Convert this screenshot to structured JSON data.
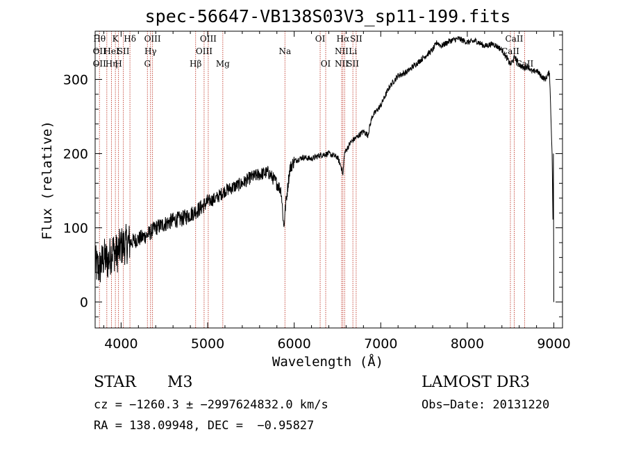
{
  "chart_data": {
    "type": "line",
    "title": "spec-56647-VB138S03V3_sp11-199.fits",
    "xlabel": "Wavelength (Å)",
    "ylabel": "Flux (relative)",
    "xlim": [
      3700,
      9100
    ],
    "ylim": [
      -35,
      365
    ],
    "xticks": [
      4000,
      5000,
      6000,
      7000,
      8000,
      9000
    ],
    "yticks": [
      0,
      100,
      200,
      300
    ],
    "series": [
      {
        "name": "spectrum",
        "x": [
          3700,
          3750,
          3800,
          3850,
          3900,
          3950,
          4000,
          4100,
          4200,
          4300,
          4400,
          4500,
          4600,
          4700,
          4800,
          4900,
          5000,
          5100,
          5200,
          5300,
          5400,
          5500,
          5600,
          5700,
          5800,
          5850,
          5880,
          5900,
          5950,
          6000,
          6100,
          6200,
          6300,
          6400,
          6500,
          6550,
          6563,
          6580,
          6650,
          6700,
          6800,
          6850,
          6900,
          7000,
          7100,
          7200,
          7300,
          7400,
          7500,
          7600,
          7650,
          7700,
          7800,
          7900,
          8000,
          8100,
          8200,
          8300,
          8400,
          8500,
          8550,
          8600,
          8650,
          8700,
          8750,
          8800,
          8850,
          8900,
          8950,
          8980,
          9000
        ],
        "y": [
          50,
          45,
          60,
          55,
          70,
          65,
          75,
          80,
          85,
          90,
          100,
          105,
          110,
          112,
          118,
          125,
          135,
          140,
          150,
          155,
          160,
          168,
          172,
          175,
          160,
          150,
          100,
          130,
          180,
          190,
          195,
          193,
          198,
          200,
          195,
          180,
          170,
          200,
          215,
          220,
          230,
          225,
          250,
          265,
          290,
          305,
          310,
          320,
          330,
          340,
          350,
          345,
          352,
          355,
          350,
          352,
          345,
          348,
          340,
          320,
          330,
          320,
          315,
          318,
          310,
          312,
          305,
          300,
          310,
          200,
          0
        ]
      }
    ],
    "lines": [
      {
        "w": 3750,
        "labels": [
          "Hθ",
          "OII",
          "OII"
        ]
      },
      {
        "w": 3835,
        "labels": [
          ""
        ]
      },
      {
        "w": 3889,
        "labels": [
          "",
          "HeI",
          "Hη"
        ]
      },
      {
        "w": 3934,
        "labels": [
          "K"
        ]
      },
      {
        "w": 3970,
        "labels": [
          "",
          "",
          "H"
        ]
      },
      {
        "w": 4026,
        "labels": [
          "",
          "SII"
        ]
      },
      {
        "w": 4102,
        "labels": [
          "Hδ"
        ]
      },
      {
        "w": 4304,
        "labels": [
          "",
          "",
          "G"
        ]
      },
      {
        "w": 4340,
        "labels": [
          "",
          "Hγ"
        ]
      },
      {
        "w": 4363,
        "labels": [
          "OIII"
        ]
      },
      {
        "w": 4861,
        "labels": [
          "",
          "",
          "Hβ"
        ]
      },
      {
        "w": 4959,
        "labels": [
          "",
          "OIII"
        ]
      },
      {
        "w": 5007,
        "labels": [
          "OIII"
        ]
      },
      {
        "w": 5175,
        "labels": [
          "",
          "",
          "Mg"
        ]
      },
      {
        "w": 5893,
        "labels": [
          "",
          "Na"
        ]
      },
      {
        "w": 6300,
        "labels": [
          "OI"
        ]
      },
      {
        "w": 6364,
        "labels": [
          "",
          "",
          "OI"
        ]
      },
      {
        "w": 6548,
        "labels": [
          "",
          "NII",
          "NII"
        ]
      },
      {
        "w": 6563,
        "labels": [
          "Hα"
        ]
      },
      {
        "w": 6583,
        "labels": [
          ""
        ]
      },
      {
        "w": 6678,
        "labels": [
          "",
          "Li",
          "SII"
        ]
      },
      {
        "w": 6716,
        "labels": [
          "SII"
        ]
      },
      {
        "w": 8498,
        "labels": [
          "",
          "CaII",
          ""
        ]
      },
      {
        "w": 8542,
        "labels": [
          "CaII"
        ]
      },
      {
        "w": 8662,
        "labels": [
          "",
          "",
          "CaII"
        ]
      }
    ]
  },
  "info": {
    "object_type": "STAR",
    "subclass": "M3",
    "survey": "LAMOST DR3",
    "cz_line": "cz = −1260.3 ± −2997624832.0 km/s",
    "obs_date": "Obs−Date: 20131220",
    "radec": "RA = 138.09948, DEC =  −0.95827"
  },
  "colors": {
    "line_marker": "#c0392b",
    "axis": "#000000",
    "spectrum": "#000000"
  }
}
